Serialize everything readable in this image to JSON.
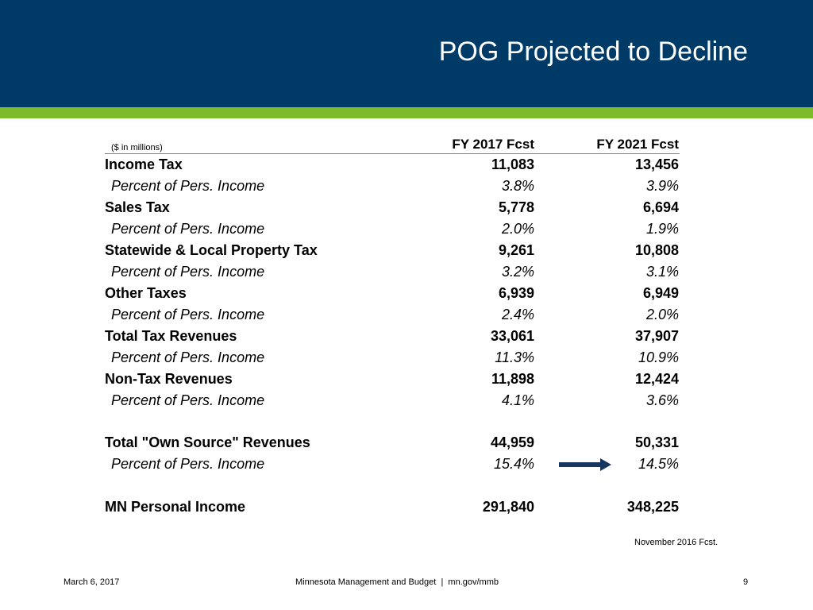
{
  "slide": {
    "title": "POG Projected to Decline"
  },
  "table": {
    "units_note": "($ in millions)",
    "columns": [
      "FY 2017 Fcst",
      "FY 2021 Fcst"
    ],
    "rows": [
      {
        "label": "Income Tax",
        "fy2017": "11,083",
        "fy2021": "13,456",
        "style": "bold"
      },
      {
        "label": "Percent of Pers. Income",
        "fy2017": "3.8%",
        "fy2021": "3.9%",
        "style": "pct"
      },
      {
        "label": "Sales Tax",
        "fy2017": "5,778",
        "fy2021": "6,694",
        "style": "bold"
      },
      {
        "label": "Percent of Pers. Income",
        "fy2017": "2.0%",
        "fy2021": "1.9%",
        "style": "pct"
      },
      {
        "label": "Statewide & Local Property Tax",
        "fy2017": "9,261",
        "fy2021": "10,808",
        "style": "bold"
      },
      {
        "label": "Percent of Pers. Income",
        "fy2017": "3.2%",
        "fy2021": "3.1%",
        "style": "pct"
      },
      {
        "label": "Other Taxes",
        "fy2017": "6,939",
        "fy2021": "6,949",
        "style": "bold"
      },
      {
        "label": "Percent of Pers. Income",
        "fy2017": "2.4%",
        "fy2021": "2.0%",
        "style": "pct"
      },
      {
        "label": "Total Tax Revenues",
        "fy2017": "33,061",
        "fy2021": "37,907",
        "style": "bold"
      },
      {
        "label": "Percent of Pers. Income",
        "fy2017": "11.3%",
        "fy2021": "10.9%",
        "style": "pct"
      },
      {
        "label": "Non-Tax Revenues",
        "fy2017": "11,898",
        "fy2021": "12,424",
        "style": "bold"
      },
      {
        "label": "Percent of Pers. Income",
        "fy2017": "4.1%",
        "fy2021": "3.6%",
        "style": "pct"
      },
      {
        "label": "Total \"Own Source\" Revenues",
        "fy2017": "44,959",
        "fy2021": "50,331",
        "style": "bold"
      },
      {
        "label": "Percent of Pers. Income",
        "fy2017": "15.4%",
        "fy2021": "14.5%",
        "style": "pct"
      },
      {
        "label": "MN Personal Income",
        "fy2017": "291,840",
        "fy2021": "348,225",
        "style": "bold"
      }
    ],
    "source_note": "November 2016 Fcst."
  },
  "colors": {
    "header_band": "#003a66",
    "accent_stripe": "#7dbb2a",
    "arrow": "#17365d"
  },
  "icons": {
    "trend_arrow": "right-arrow-icon"
  },
  "footer": {
    "date": "March 6, 2017",
    "org": "Minnesota Management and Budget  |  mn.gov/mmb",
    "page": "9"
  }
}
